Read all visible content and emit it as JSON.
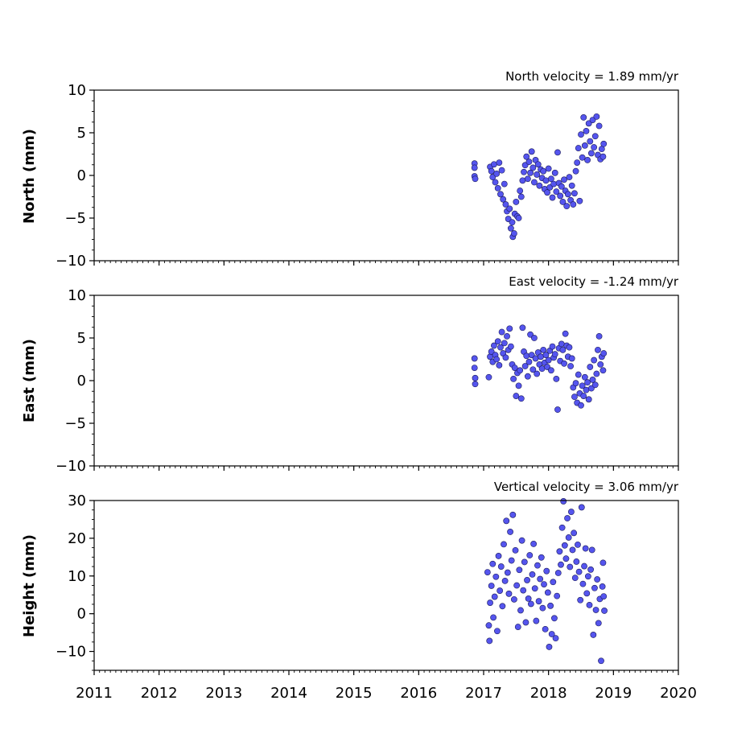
{
  "chart_data": [
    {
      "type": "scatter",
      "name": "north",
      "title": "North velocity = 1.89 mm/yr",
      "ylabel": "North (mm)",
      "xlim": [
        2011,
        2020
      ],
      "ylim": [
        -10,
        10
      ],
      "yticks": [
        -10,
        -5,
        0,
        5,
        10
      ],
      "xticks": [
        2011,
        2012,
        2013,
        2014,
        2015,
        2016,
        2017,
        2018,
        2019,
        2020
      ],
      "points": [
        [
          2016.86,
          1.4
        ],
        [
          2016.86,
          0.9
        ],
        [
          2016.86,
          -0.1
        ],
        [
          2016.87,
          -0.4
        ],
        [
          2017.1,
          1.0
        ],
        [
          2017.12,
          0.5
        ],
        [
          2017.14,
          -0.2
        ],
        [
          2017.16,
          1.3
        ],
        [
          2017.18,
          -0.8
        ],
        [
          2017.2,
          0.2
        ],
        [
          2017.22,
          -1.5
        ],
        [
          2017.24,
          1.5
        ],
        [
          2017.26,
          -2.2
        ],
        [
          2017.28,
          0.6
        ],
        [
          2017.3,
          -2.8
        ],
        [
          2017.32,
          -1.0
        ],
        [
          2017.34,
          -3.4
        ],
        [
          2017.36,
          -4.2
        ],
        [
          2017.38,
          -5.1
        ],
        [
          2017.4,
          -3.9
        ],
        [
          2017.42,
          -6.2
        ],
        [
          2017.44,
          -5.5
        ],
        [
          2017.45,
          -7.2
        ],
        [
          2017.47,
          -6.8
        ],
        [
          2017.48,
          -4.5
        ],
        [
          2017.5,
          -3.1
        ],
        [
          2017.52,
          -4.8
        ],
        [
          2017.54,
          -5.0
        ],
        [
          2017.56,
          -1.8
        ],
        [
          2017.58,
          -2.5
        ],
        [
          2017.6,
          -0.6
        ],
        [
          2017.62,
          0.4
        ],
        [
          2017.64,
          1.2
        ],
        [
          2017.66,
          2.2
        ],
        [
          2017.68,
          -0.4
        ],
        [
          2017.7,
          1.6
        ],
        [
          2017.72,
          0.3
        ],
        [
          2017.74,
          2.8
        ],
        [
          2017.76,
          0.9
        ],
        [
          2017.78,
          -0.8
        ],
        [
          2017.8,
          1.8
        ],
        [
          2017.82,
          0.1
        ],
        [
          2017.84,
          1.3
        ],
        [
          2017.86,
          -1.2
        ],
        [
          2017.88,
          0.7
        ],
        [
          2017.9,
          -0.3
        ],
        [
          2017.92,
          0.5
        ],
        [
          2017.94,
          -1.6
        ],
        [
          2017.96,
          -0.6
        ],
        [
          2017.98,
          -2.0
        ],
        [
          2018.0,
          0.8
        ],
        [
          2018.02,
          -1.4
        ],
        [
          2018.04,
          -0.4
        ],
        [
          2018.06,
          -2.6
        ],
        [
          2018.08,
          -1.0
        ],
        [
          2018.1,
          0.3
        ],
        [
          2018.12,
          -1.9
        ],
        [
          2018.14,
          2.7
        ],
        [
          2018.16,
          -0.9
        ],
        [
          2018.18,
          -2.4
        ],
        [
          2018.2,
          -1.3
        ],
        [
          2018.22,
          -3.1
        ],
        [
          2018.24,
          -0.5
        ],
        [
          2018.26,
          -1.8
        ],
        [
          2018.28,
          -3.6
        ],
        [
          2018.3,
          -2.2
        ],
        [
          2018.32,
          -0.2
        ],
        [
          2018.34,
          -2.9
        ],
        [
          2018.36,
          -1.2
        ],
        [
          2018.38,
          -3.4
        ],
        [
          2018.4,
          -2.1
        ],
        [
          2018.42,
          0.5
        ],
        [
          2018.44,
          1.5
        ],
        [
          2018.46,
          3.2
        ],
        [
          2018.48,
          -3.0
        ],
        [
          2018.5,
          4.8
        ],
        [
          2018.52,
          2.1
        ],
        [
          2018.54,
          6.8
        ],
        [
          2018.56,
          3.5
        ],
        [
          2018.58,
          5.2
        ],
        [
          2018.6,
          1.8
        ],
        [
          2018.62,
          6.1
        ],
        [
          2018.64,
          4.0
        ],
        [
          2018.66,
          2.6
        ],
        [
          2018.68,
          6.5
        ],
        [
          2018.7,
          3.3
        ],
        [
          2018.72,
          4.6
        ],
        [
          2018.74,
          6.9
        ],
        [
          2018.76,
          2.4
        ],
        [
          2018.78,
          5.8
        ],
        [
          2018.8,
          1.9
        ],
        [
          2018.82,
          3.1
        ],
        [
          2018.84,
          2.2
        ],
        [
          2018.85,
          3.7
        ]
      ]
    },
    {
      "type": "scatter",
      "name": "east",
      "title": "East velocity = -1.24 mm/yr",
      "ylabel": "East (mm)",
      "xlim": [
        2011,
        2020
      ],
      "ylim": [
        -10,
        10
      ],
      "yticks": [
        -10,
        -5,
        0,
        5,
        10
      ],
      "xticks": [
        2011,
        2012,
        2013,
        2014,
        2015,
        2016,
        2017,
        2018,
        2019,
        2020
      ],
      "points": [
        [
          2016.86,
          2.6
        ],
        [
          2016.86,
          1.5
        ],
        [
          2016.87,
          0.3
        ],
        [
          2016.87,
          -0.4
        ],
        [
          2017.08,
          0.4
        ],
        [
          2017.1,
          2.8
        ],
        [
          2017.12,
          3.4
        ],
        [
          2017.14,
          2.2
        ],
        [
          2017.16,
          4.1
        ],
        [
          2017.18,
          3.0
        ],
        [
          2017.2,
          2.5
        ],
        [
          2017.22,
          4.6
        ],
        [
          2017.24,
          1.8
        ],
        [
          2017.26,
          3.9
        ],
        [
          2017.28,
          5.7
        ],
        [
          2017.3,
          3.2
        ],
        [
          2017.32,
          4.4
        ],
        [
          2017.34,
          2.7
        ],
        [
          2017.36,
          5.2
        ],
        [
          2017.38,
          3.6
        ],
        [
          2017.4,
          6.1
        ],
        [
          2017.42,
          4.0
        ],
        [
          2017.44,
          1.9
        ],
        [
          2017.46,
          0.2
        ],
        [
          2017.48,
          1.5
        ],
        [
          2017.5,
          -1.8
        ],
        [
          2017.52,
          0.9
        ],
        [
          2017.54,
          -0.6
        ],
        [
          2017.56,
          1.2
        ],
        [
          2017.58,
          -2.1
        ],
        [
          2017.6,
          6.2
        ],
        [
          2017.62,
          3.4
        ],
        [
          2017.64,
          1.7
        ],
        [
          2017.66,
          2.9
        ],
        [
          2017.68,
          0.5
        ],
        [
          2017.7,
          2.2
        ],
        [
          2017.72,
          5.4
        ],
        [
          2017.74,
          3.0
        ],
        [
          2017.76,
          1.3
        ],
        [
          2017.78,
          5.0
        ],
        [
          2017.8,
          2.6
        ],
        [
          2017.82,
          0.8
        ],
        [
          2017.84,
          3.3
        ],
        [
          2017.86,
          1.9
        ],
        [
          2017.88,
          2.8
        ],
        [
          2017.9,
          1.4
        ],
        [
          2017.92,
          3.6
        ],
        [
          2017.94,
          2.1
        ],
        [
          2017.96,
          3.0
        ],
        [
          2017.98,
          1.6
        ],
        [
          2018.0,
          2.4
        ],
        [
          2018.02,
          3.5
        ],
        [
          2018.04,
          1.2
        ],
        [
          2018.06,
          4.0
        ],
        [
          2018.08,
          2.7
        ],
        [
          2018.1,
          3.1
        ],
        [
          2018.12,
          0.2
        ],
        [
          2018.14,
          -3.4
        ],
        [
          2018.16,
          3.8
        ],
        [
          2018.18,
          2.3
        ],
        [
          2018.2,
          4.3
        ],
        [
          2018.22,
          3.6
        ],
        [
          2018.24,
          2.0
        ],
        [
          2018.26,
          5.5
        ],
        [
          2018.28,
          4.1
        ],
        [
          2018.3,
          2.8
        ],
        [
          2018.32,
          3.9
        ],
        [
          2018.34,
          1.7
        ],
        [
          2018.36,
          2.6
        ],
        [
          2018.38,
          -0.8
        ],
        [
          2018.4,
          -1.9
        ],
        [
          2018.42,
          -0.3
        ],
        [
          2018.44,
          -2.6
        ],
        [
          2018.46,
          0.7
        ],
        [
          2018.48,
          -1.5
        ],
        [
          2018.5,
          -2.9
        ],
        [
          2018.52,
          -0.6
        ],
        [
          2018.54,
          -1.8
        ],
        [
          2018.56,
          0.4
        ],
        [
          2018.58,
          -1.1
        ],
        [
          2018.6,
          -0.2
        ],
        [
          2018.62,
          -2.2
        ],
        [
          2018.64,
          1.6
        ],
        [
          2018.66,
          -0.9
        ],
        [
          2018.68,
          0.1
        ],
        [
          2018.7,
          2.4
        ],
        [
          2018.72,
          -0.5
        ],
        [
          2018.74,
          0.8
        ],
        [
          2018.76,
          3.6
        ],
        [
          2018.78,
          5.2
        ],
        [
          2018.8,
          1.9
        ],
        [
          2018.82,
          2.8
        ],
        [
          2018.84,
          1.2
        ],
        [
          2018.85,
          3.2
        ]
      ]
    },
    {
      "type": "scatter",
      "name": "height",
      "title": "Vertical velocity = 3.06 mm/yr",
      "ylabel": "Height (mm)",
      "xlim": [
        2011,
        2020
      ],
      "ylim": [
        -15,
        30
      ],
      "yticks": [
        -10,
        0,
        10,
        20,
        30
      ],
      "xticks": [
        2011,
        2012,
        2013,
        2014,
        2015,
        2016,
        2017,
        2018,
        2019,
        2020
      ],
      "xticklabels": [
        "2011",
        "2012",
        "2013",
        "2014",
        "2015",
        "2016",
        "2017",
        "2018",
        "2019",
        "2020"
      ],
      "points": [
        [
          2017.06,
          11.0
        ],
        [
          2017.08,
          -3.1
        ],
        [
          2017.09,
          -7.2
        ],
        [
          2017.1,
          2.9
        ],
        [
          2017.12,
          7.4
        ],
        [
          2017.14,
          13.2
        ],
        [
          2017.15,
          -1.0
        ],
        [
          2017.17,
          4.5
        ],
        [
          2017.19,
          9.8
        ],
        [
          2017.21,
          -4.6
        ],
        [
          2017.23,
          15.3
        ],
        [
          2017.25,
          6.1
        ],
        [
          2017.27,
          12.5
        ],
        [
          2017.29,
          2.0
        ],
        [
          2017.31,
          18.4
        ],
        [
          2017.33,
          8.7
        ],
        [
          2017.35,
          24.6
        ],
        [
          2017.37,
          10.9
        ],
        [
          2017.39,
          5.3
        ],
        [
          2017.41,
          21.7
        ],
        [
          2017.43,
          14.1
        ],
        [
          2017.45,
          26.2
        ],
        [
          2017.47,
          3.8
        ],
        [
          2017.49,
          16.8
        ],
        [
          2017.51,
          7.5
        ],
        [
          2017.53,
          -3.5
        ],
        [
          2017.55,
          11.6
        ],
        [
          2017.57,
          0.9
        ],
        [
          2017.59,
          19.4
        ],
        [
          2017.61,
          6.2
        ],
        [
          2017.63,
          13.7
        ],
        [
          2017.65,
          -2.3
        ],
        [
          2017.67,
          8.9
        ],
        [
          2017.69,
          4.0
        ],
        [
          2017.71,
          15.5
        ],
        [
          2017.73,
          2.6
        ],
        [
          2017.75,
          10.4
        ],
        [
          2017.77,
          18.5
        ],
        [
          2017.79,
          6.7
        ],
        [
          2017.81,
          -1.9
        ],
        [
          2017.83,
          12.8
        ],
        [
          2017.85,
          3.3
        ],
        [
          2017.87,
          9.2
        ],
        [
          2017.89,
          14.9
        ],
        [
          2017.91,
          1.5
        ],
        [
          2017.93,
          7.8
        ],
        [
          2017.95,
          -4.1
        ],
        [
          2017.97,
          11.3
        ],
        [
          2017.99,
          5.6
        ],
        [
          2018.01,
          -8.8
        ],
        [
          2018.03,
          2.1
        ],
        [
          2018.05,
          -5.4
        ],
        [
          2018.07,
          8.4
        ],
        [
          2018.09,
          -1.2
        ],
        [
          2018.11,
          -6.5
        ],
        [
          2018.13,
          4.7
        ],
        [
          2018.15,
          10.8
        ],
        [
          2018.17,
          16.5
        ],
        [
          2018.19,
          13.0
        ],
        [
          2018.21,
          22.8
        ],
        [
          2018.23,
          29.8
        ],
        [
          2018.25,
          18.1
        ],
        [
          2018.27,
          14.6
        ],
        [
          2018.29,
          25.3
        ],
        [
          2018.31,
          20.2
        ],
        [
          2018.33,
          12.4
        ],
        [
          2018.35,
          27.0
        ],
        [
          2018.37,
          16.9
        ],
        [
          2018.39,
          21.4
        ],
        [
          2018.41,
          9.5
        ],
        [
          2018.43,
          13.8
        ],
        [
          2018.45,
          18.3
        ],
        [
          2018.47,
          11.1
        ],
        [
          2018.49,
          3.6
        ],
        [
          2018.51,
          28.2
        ],
        [
          2018.53,
          7.9
        ],
        [
          2018.55,
          12.6
        ],
        [
          2018.57,
          17.3
        ],
        [
          2018.59,
          5.4
        ],
        [
          2018.61,
          9.9
        ],
        [
          2018.63,
          2.3
        ],
        [
          2018.65,
          11.7
        ],
        [
          2018.67,
          16.9
        ],
        [
          2018.69,
          -5.6
        ],
        [
          2018.71,
          6.8
        ],
        [
          2018.73,
          1.0
        ],
        [
          2018.75,
          9.1
        ],
        [
          2018.77,
          -2.5
        ],
        [
          2018.79,
          3.9
        ],
        [
          2018.81,
          -12.5
        ],
        [
          2018.83,
          7.2
        ],
        [
          2018.84,
          13.5
        ],
        [
          2018.85,
          4.6
        ],
        [
          2018.86,
          0.8
        ]
      ]
    }
  ]
}
